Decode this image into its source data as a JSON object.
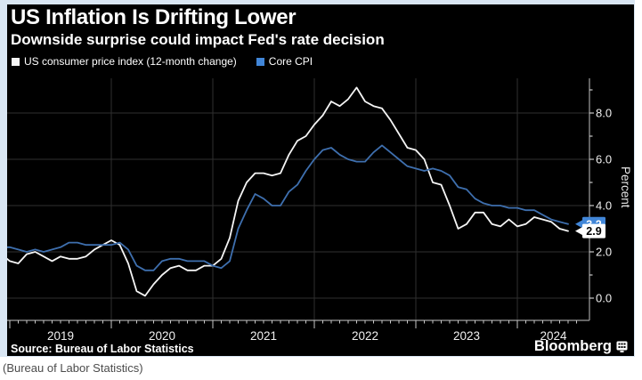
{
  "header": {
    "title": "US Inflation Is Drifting Lower",
    "subtitle": "Downside surprise could impact Fed's rate decision"
  },
  "legend": [
    {
      "label": "US consumer price index (12-month change)",
      "color": "#f5f5f5"
    },
    {
      "label": "Core CPI",
      "color": "#4186d8"
    }
  ],
  "chart_data": {
    "type": "line",
    "title": "US Inflation Is Drifting Lower",
    "subtitle": "Downside surprise could impact Fed's rate decision",
    "ylabel": "Percent",
    "x_start": "2018-12",
    "x_end": "2024-07",
    "frequency": "monthly",
    "ylim": [
      -1,
      9.5
    ],
    "yticks": [
      0,
      2,
      4,
      6,
      8
    ],
    "ytick_labels": [
      "0.0",
      "2.0",
      "4.0",
      "6.0",
      "8.0"
    ],
    "xtick_labels": [
      "2019",
      "2020",
      "2021",
      "2022",
      "2023",
      "2024"
    ],
    "grid": true,
    "legend_position": "top-left",
    "series": [
      {
        "name": "US consumer price index (12-month change)",
        "color": "#f5f5f5",
        "badge_bg": "#ffffff",
        "badge_text_color": "#000000",
        "end_label": "2.9",
        "values": [
          1.9,
          1.6,
          1.5,
          1.9,
          2.0,
          1.8,
          1.6,
          1.8,
          1.7,
          1.7,
          1.8,
          2.1,
          2.3,
          2.5,
          2.3,
          1.5,
          0.3,
          0.1,
          0.6,
          1.0,
          1.3,
          1.4,
          1.2,
          1.2,
          1.4,
          1.4,
          1.7,
          2.6,
          4.2,
          5.0,
          5.4,
          5.4,
          5.3,
          5.4,
          6.2,
          6.8,
          7.0,
          7.5,
          7.9,
          8.5,
          8.3,
          8.6,
          9.1,
          8.5,
          8.3,
          8.2,
          7.7,
          7.1,
          6.5,
          6.4,
          6.0,
          5.0,
          4.9,
          4.0,
          3.0,
          3.2,
          3.7,
          3.7,
          3.2,
          3.1,
          3.4,
          3.1,
          3.2,
          3.5,
          3.4,
          3.3,
          3.0,
          2.9
        ]
      },
      {
        "name": "Core CPI",
        "color": "#3e6fae",
        "badge_bg": "#4186d8",
        "badge_text_color": "#ffffff",
        "end_label": "3.2",
        "values": [
          2.2,
          2.2,
          2.1,
          2.0,
          2.1,
          2.0,
          2.1,
          2.2,
          2.4,
          2.4,
          2.3,
          2.3,
          2.3,
          2.3,
          2.4,
          2.1,
          1.4,
          1.2,
          1.2,
          1.6,
          1.7,
          1.7,
          1.6,
          1.6,
          1.6,
          1.4,
          1.3,
          1.6,
          3.0,
          3.8,
          4.5,
          4.3,
          4.0,
          4.0,
          4.6,
          4.9,
          5.5,
          6.0,
          6.4,
          6.5,
          6.2,
          6.0,
          5.9,
          5.9,
          6.3,
          6.6,
          6.3,
          6.0,
          5.7,
          5.6,
          5.5,
          5.6,
          5.5,
          5.3,
          4.8,
          4.7,
          4.3,
          4.1,
          4.0,
          4.0,
          3.9,
          3.9,
          3.8,
          3.8,
          3.6,
          3.4,
          3.3,
          3.2
        ]
      }
    ]
  },
  "axis": {
    "unit_label": "Percent"
  },
  "source": "Source: Bureau of Labor Statistics",
  "brand": "Bloomberg",
  "caption": "(Bureau of Labor Statistics)"
}
